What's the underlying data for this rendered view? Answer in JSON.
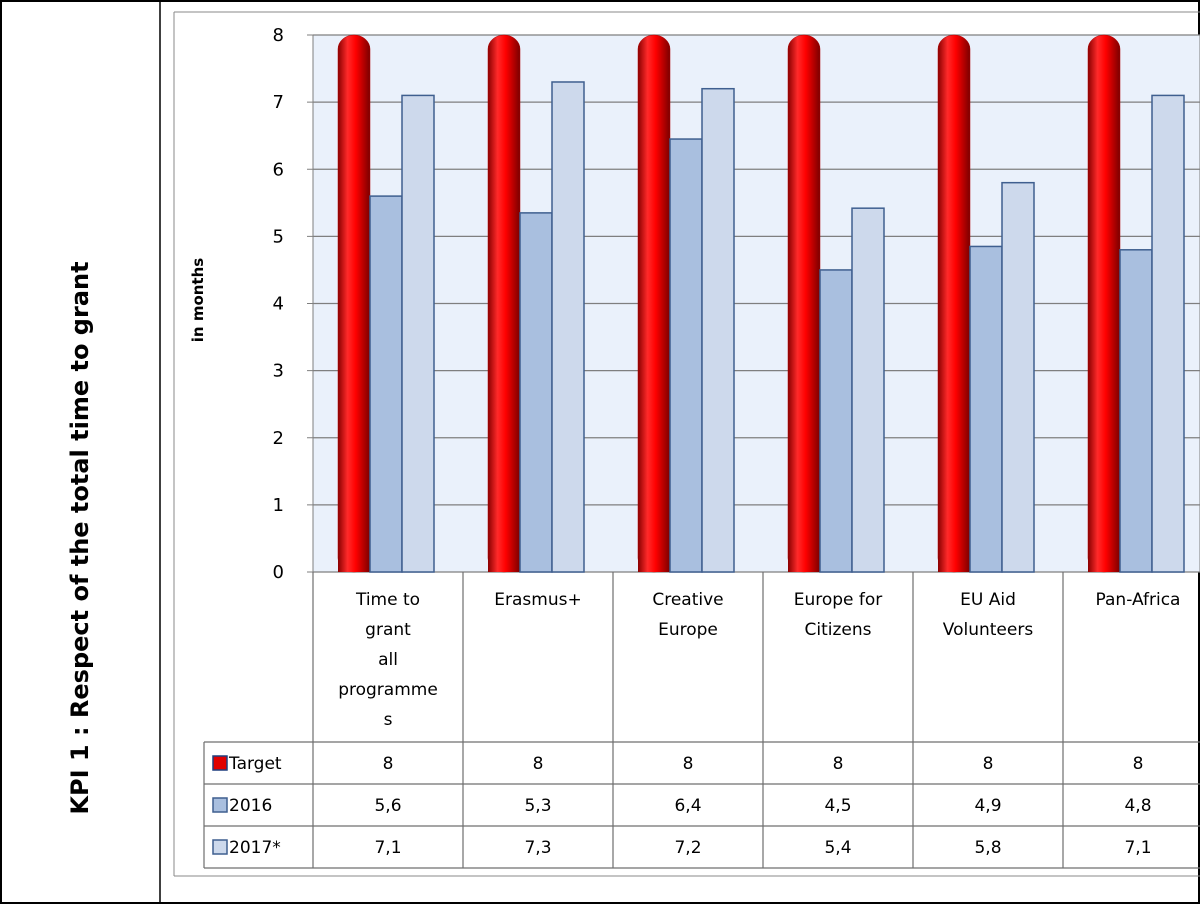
{
  "kpi_title": "KPI 1 : Respect of the total time to grant",
  "chart_data": {
    "type": "bar",
    "ylabel": "in months",
    "ylim": [
      0,
      8
    ],
    "yticks": [
      0,
      1,
      2,
      3,
      4,
      5,
      6,
      7,
      8
    ],
    "grid": true,
    "categories": [
      [
        "Time to",
        "grant",
        "all",
        "programme",
        "s"
      ],
      [
        "Erasmus+"
      ],
      [
        "Creative",
        "Europe"
      ],
      [
        "Europe for",
        "Citizens"
      ],
      [
        "EU Aid",
        "Volunteers"
      ],
      [
        "Pan-Africa"
      ]
    ],
    "series": [
      {
        "name": "Target",
        "values": [
          8,
          8,
          8,
          8,
          8,
          8
        ],
        "display": [
          "8",
          "8",
          "8",
          "8",
          "8",
          "8"
        ],
        "color": "#e00000"
      },
      {
        "name": "2016",
        "values": [
          5.6,
          5.35,
          6.45,
          4.5,
          4.85,
          4.8
        ],
        "display": [
          "5,6",
          "5,3",
          "6,4",
          "4,5",
          "4,9",
          "4,8"
        ],
        "color": "#a9bfdf"
      },
      {
        "name": "2017*",
        "values": [
          7.1,
          7.3,
          7.2,
          5.42,
          5.8,
          7.1
        ],
        "display": [
          "7,1",
          "7,3",
          "7,2",
          "5,4",
          "5,8",
          "7,1"
        ],
        "color": "#cdd9ec"
      }
    ],
    "legend": "data-table"
  }
}
